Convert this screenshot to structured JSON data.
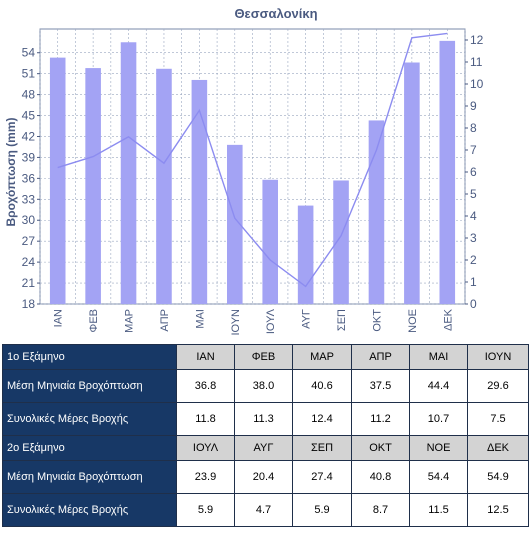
{
  "chart_data": {
    "type": "bar+line",
    "title": "Θεσσαλονίκη",
    "ylabel_left": "Βροχόπτωση (mm)",
    "categories": [
      "ΙΑΝ",
      "ΦΕΒ",
      "ΜΑΡ",
      "ΑΠΡ",
      "ΜΑΙ",
      "ΙΟΥΝ",
      "ΙΟΥΛ",
      "ΑΥΓ",
      "ΣΕΠ",
      "ΟΚΤ",
      "ΝΟΕ",
      "ΔΕΚ"
    ],
    "left_ticks": [
      18,
      21,
      24,
      27,
      30,
      33,
      36,
      39,
      42,
      45,
      48,
      51,
      54
    ],
    "right_ticks": [
      0,
      1,
      2,
      3,
      4,
      5,
      6,
      7,
      8,
      9,
      10,
      11,
      12
    ],
    "ylim_left": [
      18,
      57.4
    ],
    "ylim_right": [
      0,
      12.5
    ],
    "grid": true,
    "series": [
      {
        "kind": "bar",
        "axis": "left",
        "color": "#a3a3f4",
        "values": [
          53.3,
          51.8,
          55.5,
          51.7,
          50.1,
          40.8,
          35.8,
          32.1,
          35.7,
          44.3,
          52.6,
          55.7
        ]
      },
      {
        "kind": "line",
        "axis": "right",
        "color": "#8c8cf0",
        "values": [
          6.2,
          6.7,
          7.6,
          6.4,
          8.8,
          3.9,
          2.0,
          0.8,
          3.1,
          7.0,
          12.1,
          12.3
        ]
      }
    ]
  },
  "table": {
    "half1": {
      "label": "1ο Εξάμηνο",
      "months": [
        "ΙΑΝ",
        "ΦΕΒ",
        "ΜΑΡ",
        "ΑΠΡ",
        "ΜΑΙ",
        "ΙΟΥΝ"
      ],
      "rain_label": "Μέση Μηνιαία Βροχόπτωση",
      "rain": [
        "36.8",
        "38.0",
        "40.6",
        "37.5",
        "44.4",
        "29.6"
      ],
      "days_label": "Συνολικές Μέρες Βροχής",
      "days": [
        "11.8",
        "11.3",
        "12.4",
        "11.2",
        "10.7",
        "7.5"
      ]
    },
    "half2": {
      "label": "2ο Εξάμηνο",
      "months": [
        "ΙΟΥΛ",
        "ΑΥΓ",
        "ΣΕΠ",
        "ΟΚΤ",
        "ΝΟΕ",
        "ΔΕΚ"
      ],
      "rain_label": "Μέση Μηνιαία Βροχόπτωση",
      "rain": [
        "23.9",
        "20.4",
        "27.4",
        "40.8",
        "54.4",
        "54.9"
      ],
      "days_label": "Συνολικές Μέρες Βροχής",
      "days": [
        "5.9",
        "4.7",
        "5.9",
        "8.7",
        "11.5",
        "12.5"
      ]
    }
  }
}
